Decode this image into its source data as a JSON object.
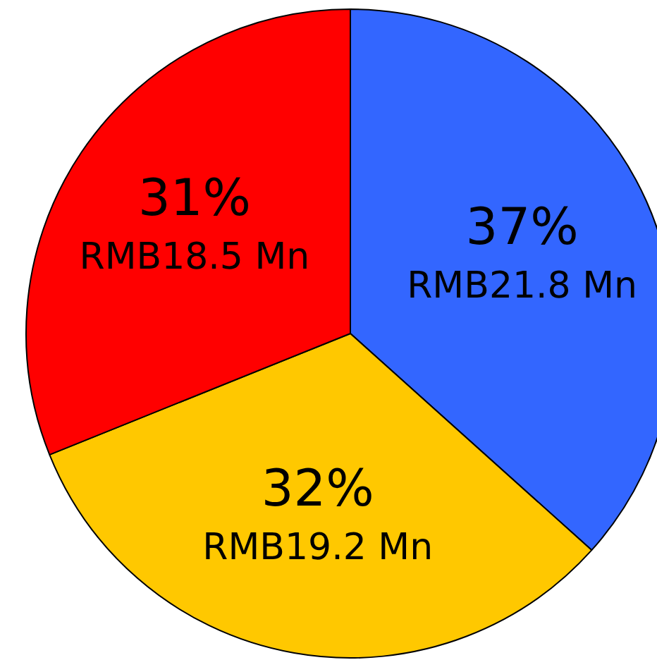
{
  "chart_data": {
    "type": "pie",
    "categories": [
      null,
      null,
      null
    ],
    "values": [
      21.8,
      19.2,
      18.5
    ],
    "value_labels": [
      "37%\nRMB21.8 Mn",
      "32%\nRMB19.2 Mn",
      "31%\nRMB18.5 Mn"
    ],
    "colors": [
      "#3366ff",
      "#ffc800",
      "#ff0000"
    ]
  }
}
